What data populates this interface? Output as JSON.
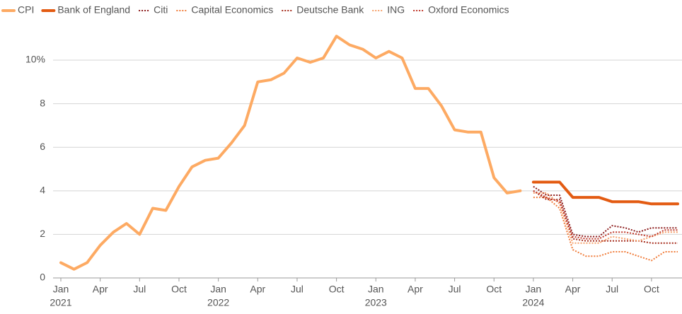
{
  "chart_data": {
    "type": "line",
    "x": [
      "2021-01",
      "2021-02",
      "2021-03",
      "2021-04",
      "2021-05",
      "2021-06",
      "2021-07",
      "2021-08",
      "2021-09",
      "2021-10",
      "2021-11",
      "2021-12",
      "2022-01",
      "2022-02",
      "2022-03",
      "2022-04",
      "2022-05",
      "2022-06",
      "2022-07",
      "2022-08",
      "2022-09",
      "2022-10",
      "2022-11",
      "2022-12",
      "2023-01",
      "2023-02",
      "2023-03",
      "2023-04",
      "2023-05",
      "2023-06",
      "2023-07",
      "2023-08",
      "2023-09",
      "2023-10",
      "2023-11",
      "2023-12",
      "2024-01",
      "2024-02",
      "2024-03",
      "2024-04",
      "2024-05",
      "2024-06",
      "2024-07",
      "2024-08",
      "2024-09",
      "2024-10",
      "2024-11",
      "2024-12"
    ],
    "series": [
      {
        "name": "CPI",
        "color": "#fdaa63",
        "style": "solid",
        "width": 4,
        "values": [
          0.7,
          0.4,
          0.7,
          1.5,
          2.1,
          2.5,
          2.0,
          3.2,
          3.1,
          4.2,
          5.1,
          5.4,
          5.5,
          6.2,
          7.0,
          9.0,
          9.1,
          9.4,
          10.1,
          9.9,
          10.1,
          11.1,
          10.7,
          10.5,
          10.1,
          10.4,
          10.1,
          8.7,
          8.7,
          7.9,
          6.8,
          6.7,
          6.7,
          4.6,
          3.9,
          4.0,
          null,
          null,
          null,
          null,
          null,
          null,
          null,
          null,
          null,
          null,
          null,
          null
        ]
      },
      {
        "name": "Bank of England",
        "color": "#e35b12",
        "style": "solid",
        "width": 4,
        "values": [
          null,
          null,
          null,
          null,
          null,
          null,
          null,
          null,
          null,
          null,
          null,
          null,
          null,
          null,
          null,
          null,
          null,
          null,
          null,
          null,
          null,
          null,
          null,
          null,
          null,
          null,
          null,
          null,
          null,
          null,
          null,
          null,
          null,
          null,
          null,
          null,
          4.4,
          4.4,
          4.4,
          3.7,
          3.7,
          3.7,
          3.5,
          3.5,
          3.5,
          3.4,
          3.4,
          3.4
        ]
      },
      {
        "name": "Citi",
        "color": "#8b1a1a",
        "style": "dotted",
        "width": 2,
        "values": [
          null,
          null,
          null,
          null,
          null,
          null,
          null,
          null,
          null,
          null,
          null,
          null,
          null,
          null,
          null,
          null,
          null,
          null,
          null,
          null,
          null,
          null,
          null,
          null,
          null,
          null,
          null,
          null,
          null,
          null,
          null,
          null,
          null,
          null,
          null,
          null,
          4.2,
          3.8,
          3.8,
          2.0,
          1.9,
          1.9,
          2.4,
          2.3,
          2.1,
          2.3,
          2.3,
          2.3
        ]
      },
      {
        "name": "Capital Economics",
        "color": "#f07c3a",
        "style": "dotted",
        "width": 2,
        "values": [
          null,
          null,
          null,
          null,
          null,
          null,
          null,
          null,
          null,
          null,
          null,
          null,
          null,
          null,
          null,
          null,
          null,
          null,
          null,
          null,
          null,
          null,
          null,
          null,
          null,
          null,
          null,
          null,
          null,
          null,
          null,
          null,
          null,
          null,
          null,
          null,
          3.7,
          3.7,
          3.2,
          1.3,
          1.0,
          1.0,
          1.2,
          1.2,
          1.0,
          0.8,
          1.2,
          1.2
        ]
      },
      {
        "name": "Deutsche Bank",
        "color": "#a52a1a",
        "style": "dotted",
        "width": 2,
        "values": [
          null,
          null,
          null,
          null,
          null,
          null,
          null,
          null,
          null,
          null,
          null,
          null,
          null,
          null,
          null,
          null,
          null,
          null,
          null,
          null,
          null,
          null,
          null,
          null,
          null,
          null,
          null,
          null,
          null,
          null,
          null,
          null,
          null,
          null,
          null,
          null,
          4.0,
          3.6,
          3.6,
          1.8,
          1.7,
          1.7,
          1.7,
          1.7,
          1.7,
          1.6,
          1.6,
          1.6
        ]
      },
      {
        "name": "ING",
        "color": "#f6a06a",
        "style": "dotted",
        "width": 2,
        "values": [
          null,
          null,
          null,
          null,
          null,
          null,
          null,
          null,
          null,
          null,
          null,
          null,
          null,
          null,
          null,
          null,
          null,
          null,
          null,
          null,
          null,
          null,
          null,
          null,
          null,
          null,
          null,
          null,
          null,
          null,
          null,
          null,
          null,
          null,
          null,
          null,
          3.9,
          3.9,
          3.4,
          1.6,
          1.6,
          1.6,
          1.9,
          1.8,
          1.7,
          1.9,
          2.1,
          2.1
        ]
      },
      {
        "name": "Oxford Economics",
        "color": "#c0392b",
        "style": "dotted",
        "width": 2,
        "values": [
          null,
          null,
          null,
          null,
          null,
          null,
          null,
          null,
          null,
          null,
          null,
          null,
          null,
          null,
          null,
          null,
          null,
          null,
          null,
          null,
          null,
          null,
          null,
          null,
          null,
          null,
          null,
          null,
          null,
          null,
          null,
          null,
          null,
          null,
          null,
          null,
          4.0,
          3.7,
          3.5,
          1.9,
          1.8,
          1.8,
          2.1,
          2.1,
          2.0,
          1.9,
          2.2,
          2.2
        ]
      }
    ],
    "xlim": [
      "2021-01",
      "2024-12"
    ],
    "xticks": [
      {
        "value": "2021-01",
        "label": "Jan",
        "sublabel": "2021"
      },
      {
        "value": "2021-04",
        "label": "Apr"
      },
      {
        "value": "2021-07",
        "label": "Jul"
      },
      {
        "value": "2021-10",
        "label": "Oct"
      },
      {
        "value": "2022-01",
        "label": "Jan",
        "sublabel": "2022"
      },
      {
        "value": "2022-04",
        "label": "Apr"
      },
      {
        "value": "2022-07",
        "label": "Jul"
      },
      {
        "value": "2022-10",
        "label": "Oct"
      },
      {
        "value": "2023-01",
        "label": "Jan",
        "sublabel": "2023"
      },
      {
        "value": "2023-04",
        "label": "Apr"
      },
      {
        "value": "2023-07",
        "label": "Jul"
      },
      {
        "value": "2023-10",
        "label": "Oct"
      },
      {
        "value": "2024-01",
        "label": "Jan",
        "sublabel": "2024"
      },
      {
        "value": "2024-04",
        "label": "Apr"
      },
      {
        "value": "2024-07",
        "label": "Jul"
      },
      {
        "value": "2024-10",
        "label": "Oct"
      }
    ],
    "ylim": [
      0,
      11.3
    ],
    "yticks": [
      0,
      2,
      4,
      6,
      8,
      {
        "value": 10,
        "label": "10%"
      }
    ],
    "grid": true,
    "legend": "top"
  }
}
